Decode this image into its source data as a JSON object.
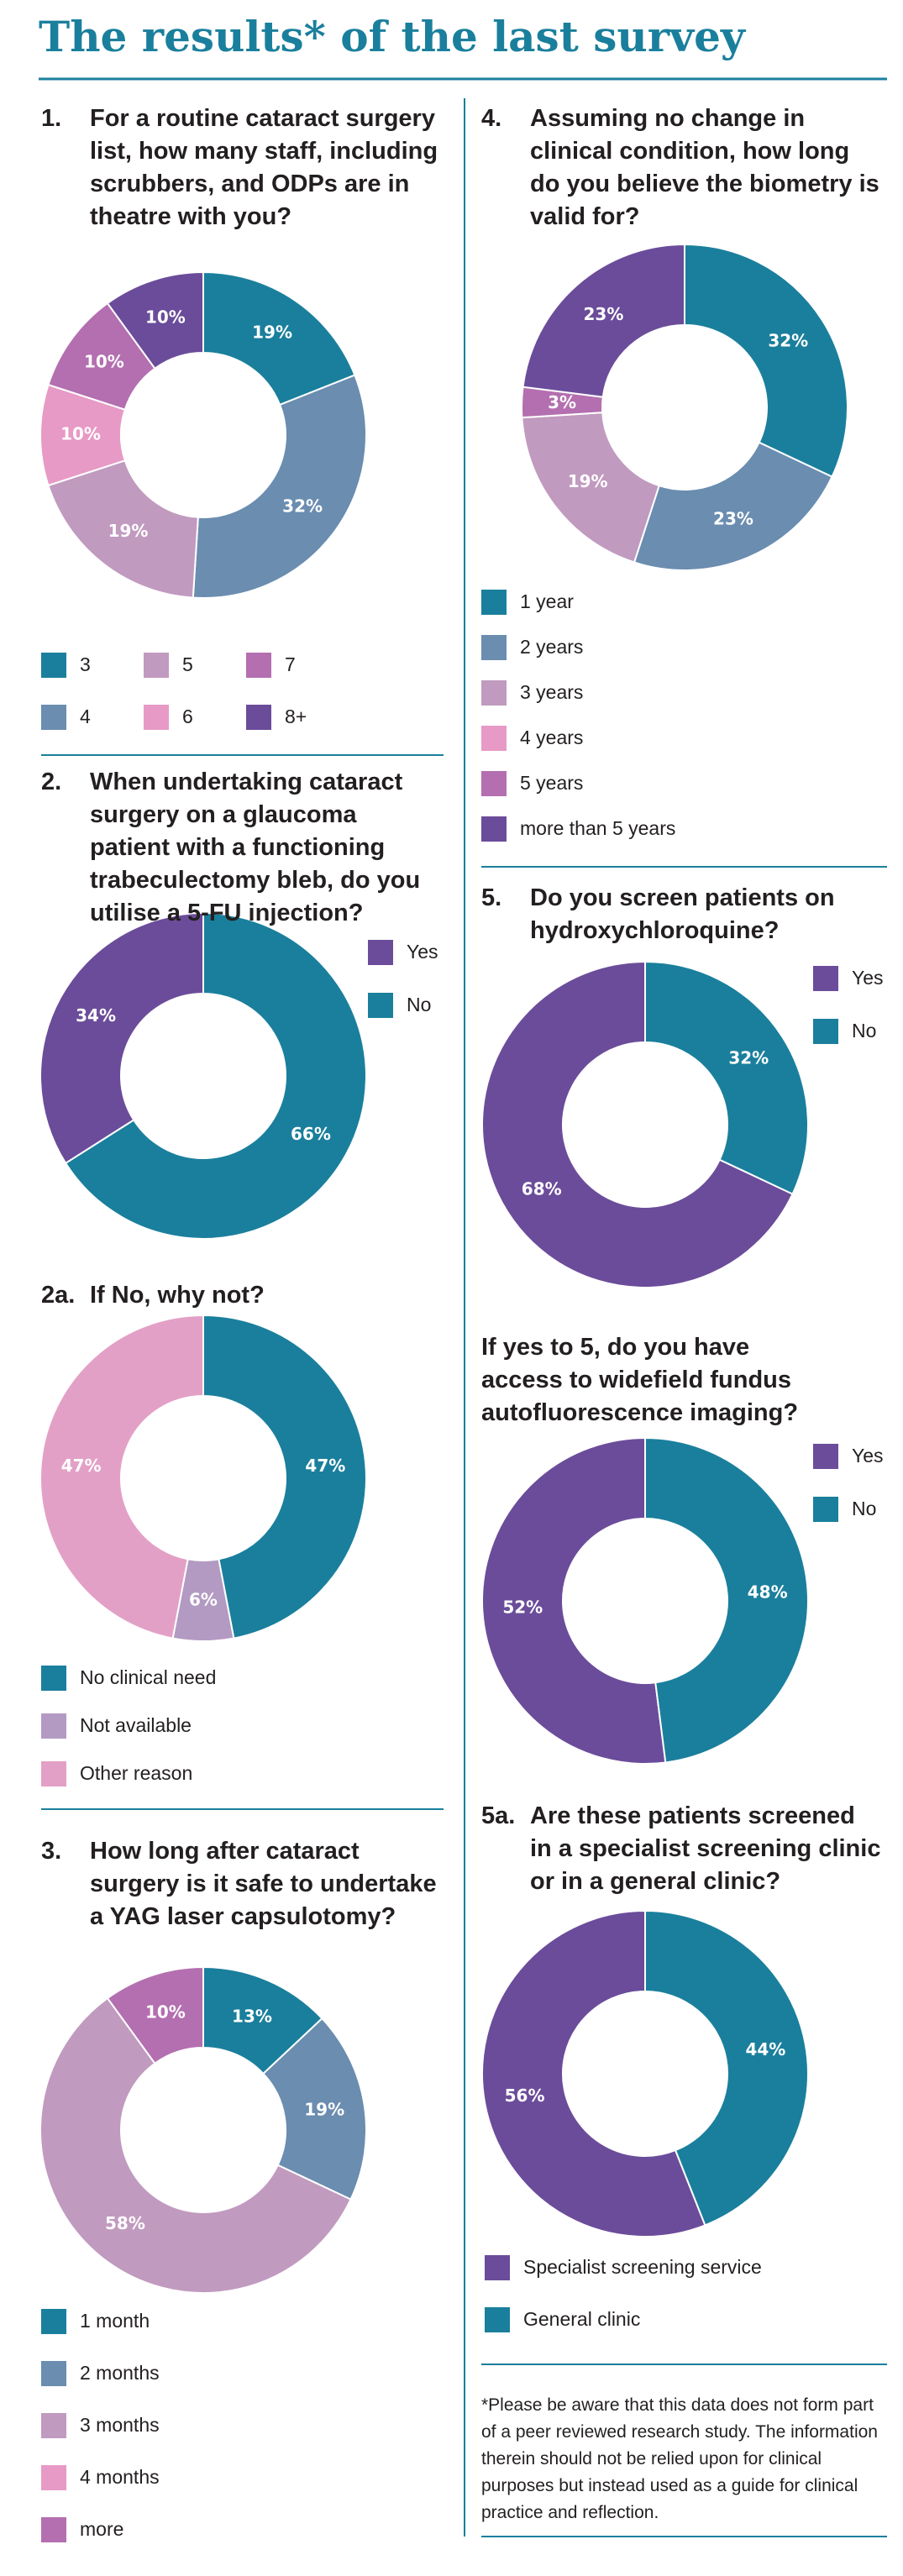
{
  "title": "The results* of the last survey",
  "chart_data": [
    {
      "type": "donut",
      "number": "1.",
      "title": "For a routine cataract surgery list, how many staff, including scrubbers, and ODPs are in theatre with you?",
      "categories": [
        "3",
        "4",
        "5",
        "6",
        "7",
        "8+"
      ],
      "values": [
        19,
        32,
        19,
        10,
        10,
        10
      ],
      "value_labels": [
        "19%",
        "32%",
        "19%",
        "10%",
        "10%",
        "10%"
      ],
      "colors": [
        "#1a7f9c",
        "#6a8db0",
        "#c19abf",
        "#e79ac6",
        "#b46fb0",
        "#6b4c9a"
      ],
      "direction": "clockwise"
    },
    {
      "type": "donut",
      "number": "2.",
      "title": "When undertaking cataract surgery on a glaucoma patient with a functioning trabeculectomy bleb, do you utilise a 5-FU injection?",
      "categories": [
        "Yes",
        "No"
      ],
      "values": [
        34,
        66
      ],
      "value_labels": [
        "34%",
        "66%"
      ],
      "colors": [
        "#6b4c9a",
        "#1a7f9c"
      ],
      "direction": "counterclockwise"
    },
    {
      "type": "donut",
      "number": "2a.",
      "title": "If No, why not?",
      "categories": [
        "No clinical need",
        "Not available",
        "Other reason"
      ],
      "values": [
        47,
        6,
        47
      ],
      "value_labels": [
        "47%",
        "6%",
        "47%"
      ],
      "colors": [
        "#1a7f9c",
        "#b39ac2",
        "#e3a0c6"
      ],
      "direction": "clockwise"
    },
    {
      "type": "donut",
      "number": "3.",
      "title": "How long after cataract surgery is it safe to undertake a YAG laser capsulotomy?",
      "categories": [
        "1 month",
        "2 months",
        "3 months",
        "4 months",
        "more"
      ],
      "values": [
        13,
        19,
        58,
        0,
        10
      ],
      "value_labels": [
        "13%",
        "19%",
        "58%",
        null,
        "10%"
      ],
      "colors": [
        "#1a7f9c",
        "#6a8db0",
        "#c19abf",
        "#e79ac6",
        "#b46fb0"
      ],
      "direction": "clockwise"
    },
    {
      "type": "donut",
      "number": "4.",
      "title": "Assuming no change in clinical condition, how long do you believe the biometry is valid for?",
      "categories": [
        "1 year",
        "2 years",
        "3 years",
        "4 years",
        "5 years",
        "more than 5 years"
      ],
      "values": [
        32,
        23,
        19,
        0,
        3,
        23
      ],
      "value_labels": [
        "32%",
        "23%",
        "19%",
        null,
        "3%",
        "23%"
      ],
      "colors": [
        "#1a7f9c",
        "#6a8db0",
        "#c19abf",
        "#e79ac6",
        "#b46fb0",
        "#6b4c9a"
      ],
      "direction": "clockwise"
    },
    {
      "type": "donut",
      "number": "5.",
      "title": "Do you screen patients on hydroxychloroquine?",
      "categories": [
        "Yes",
        "No"
      ],
      "values": [
        68,
        32
      ],
      "value_labels": [
        "68%",
        "32%"
      ],
      "colors": [
        "#6b4c9a",
        "#1a7f9c"
      ],
      "direction": "counterclockwise"
    },
    {
      "type": "donut",
      "title": "If yes to 5, do you have access to widefield fundus autofluorescence imaging?",
      "categories": [
        "Yes",
        "No"
      ],
      "values": [
        52,
        48
      ],
      "value_labels": [
        "52%",
        "48%"
      ],
      "colors": [
        "#6b4c9a",
        "#1a7f9c"
      ],
      "direction": "counterclockwise"
    },
    {
      "type": "donut",
      "number": "5a.",
      "title": "Are these patients screened in a specialist screening clinic or in a general clinic?",
      "categories": [
        "Specialist screening service",
        "General clinic"
      ],
      "values": [
        56,
        44
      ],
      "value_labels": [
        "56%",
        "44%"
      ],
      "colors": [
        "#6b4c9a",
        "#1a7f9c"
      ],
      "direction": "counterclockwise"
    }
  ],
  "footnote": "*Please be aware that this data does not form part of a peer reviewed research study. The information therein should not be relied upon for clinical purposes but instead used as a guide for clinical practice and reflection."
}
